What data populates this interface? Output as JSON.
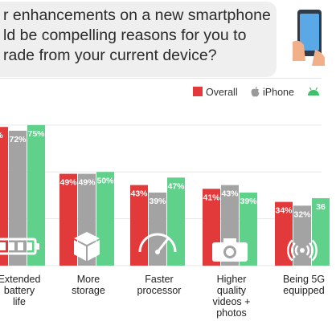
{
  "question": {
    "lines": [
      "r enhancements on a new smartphone",
      "ld be compelling reasons for you to",
      "rade from your current device?"
    ]
  },
  "legend": {
    "items": [
      {
        "label": "Overall",
        "color": "#e2393a",
        "icon": "red-square-icon"
      },
      {
        "label": "iPhone",
        "color": "#9a9a9a",
        "icon": "apple-icon"
      },
      {
        "label": "",
        "color": "#3fbf6a",
        "icon": "android-icon"
      }
    ]
  },
  "colors": {
    "overall": "#e2393a",
    "iphone": "#a3a3a3",
    "android": "#5fd18b"
  },
  "chart_data": {
    "type": "bar",
    "categories": [
      "Extended battery life",
      "More storage",
      "Faster processor",
      "Higher quality videos + photos",
      "Being 5G equipped"
    ],
    "category_label_lines": [
      [
        "Extended",
        "battery",
        "life"
      ],
      [
        "More",
        "storage"
      ],
      [
        "Faster",
        "processor"
      ],
      [
        "Higher",
        "quality",
        "videos +",
        "photos"
      ],
      [
        "Being 5G",
        "equipped"
      ]
    ],
    "category_icons": [
      "battery-icon",
      "box-icon",
      "speedometer-icon",
      "camera-icon",
      "signal-icon"
    ],
    "series": [
      {
        "name": "Overall",
        "values": [
          74,
          49,
          43,
          41,
          34
        ]
      },
      {
        "name": "iPhone",
        "values": [
          72,
          49,
          39,
          43,
          32
        ]
      },
      {
        "name": "",
        "values": [
          75,
          50,
          47,
          39,
          36
        ]
      }
    ],
    "value_labels": [
      [
        "%",
        "72%",
        "75%"
      ],
      [
        "49%",
        "49%",
        "50%"
      ],
      [
        "43%",
        "39%",
        "47%"
      ],
      [
        "41%",
        "43%",
        "39%"
      ],
      [
        "34%",
        "32%",
        "36"
      ]
    ],
    "ylim": [
      0,
      100
    ],
    "title": "",
    "xlabel": "",
    "ylabel": ""
  }
}
